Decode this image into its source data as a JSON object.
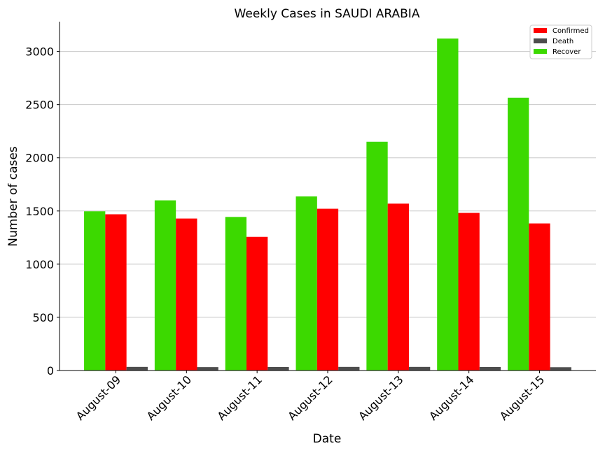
{
  "chart_data": {
    "type": "bar",
    "title": "Weekly Cases in SAUDI ARABIA",
    "xlabel": "Date",
    "ylabel": "Number of cases",
    "categories": [
      "August-09",
      "August-10",
      "August-11",
      "August-12",
      "August-13",
      "August-14",
      "August-15"
    ],
    "series": [
      {
        "name": "Recover",
        "color": "#3cd900",
        "values": [
          1497,
          1600,
          1444,
          1637,
          2151,
          3121,
          2565
        ]
      },
      {
        "name": "Confirmed",
        "color": "#ff0000",
        "values": [
          1469,
          1429,
          1257,
          1521,
          1569,
          1482,
          1383
        ]
      },
      {
        "name": "Death",
        "color": "#4d4d4d",
        "values": [
          34,
          32,
          33,
          34,
          34,
          33,
          31
        ]
      }
    ],
    "legend_order": [
      "Confirmed",
      "Death",
      "Recover"
    ],
    "legend_position": "top-right",
    "ylim": [
      0,
      3280
    ],
    "yticks": [
      0,
      500,
      1000,
      1500,
      2000,
      2500,
      3000
    ],
    "grid": "horizontal"
  }
}
